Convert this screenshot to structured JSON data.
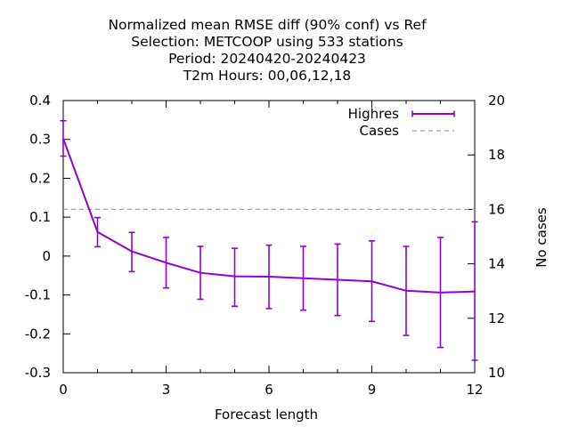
{
  "chart_data": {
    "type": "line",
    "title_lines": [
      "Normalized mean RMSE diff (90% conf) vs Ref",
      "Selection: METCOOP using   533 stations",
      "Period: 20240420-20240423",
      "T2m   Hours:  00,06,12,18"
    ],
    "xlabel": "Forecast length",
    "ylabel": "",
    "y2label": "No cases",
    "xlim": [
      0,
      12
    ],
    "ylim": [
      -0.3,
      0.4
    ],
    "y2lim": [
      10,
      20
    ],
    "xticks": [
      "0",
      "3",
      "6",
      "9",
      "12"
    ],
    "yticks": [
      "0.4",
      "0.3",
      "0.2",
      "0.1",
      "0",
      "-0.1",
      "-0.2",
      "-0.3"
    ],
    "y2ticks": [
      "20",
      "18",
      "16",
      "14",
      "12",
      "10"
    ],
    "grid": false,
    "legend_position": "top-right",
    "series": [
      {
        "name": "Highres",
        "color": "#9400d3",
        "style": "line-errorbars",
        "x": [
          0,
          1,
          2,
          3,
          4,
          5,
          6,
          7,
          8,
          9,
          10,
          11,
          12
        ],
        "y": [
          0.302,
          0.062,
          0.012,
          -0.017,
          -0.043,
          -0.052,
          -0.053,
          -0.057,
          -0.061,
          -0.065,
          -0.089,
          -0.094,
          -0.091
        ],
        "ylow": [
          0.257,
          0.024,
          -0.04,
          -0.082,
          -0.111,
          -0.129,
          -0.135,
          -0.139,
          -0.153,
          -0.168,
          -0.204,
          -0.235,
          -0.268
        ],
        "yhigh": [
          0.348,
          0.099,
          0.061,
          0.048,
          0.025,
          0.02,
          0.028,
          0.025,
          0.031,
          0.039,
          0.025,
          0.048,
          0.088
        ]
      },
      {
        "name": "Cases",
        "color": "#a0a0a0",
        "style": "dashed",
        "axis": "y2",
        "x": [
          0,
          12
        ],
        "y": [
          16,
          16
        ]
      }
    ]
  }
}
